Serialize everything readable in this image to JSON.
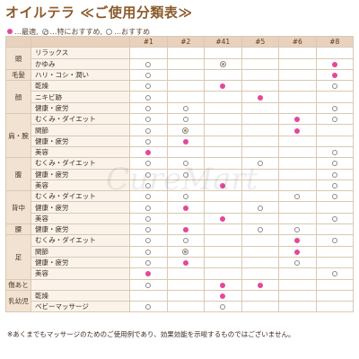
{
  "title": "オイルテラ ≪ご使用分類表≫",
  "legend": {
    "best": "…最適,",
    "especially": "…特におすすめ,",
    "recommended": "…おすすめ"
  },
  "watermark": "CureMart",
  "columns": [
    "#1",
    "#2",
    "#41",
    "#5",
    "#6",
    "#8"
  ],
  "rows": [
    {
      "category": "頭",
      "span": 2,
      "label": "リラックス",
      "marks": [
        "",
        "",
        "",
        "",
        "",
        ""
      ]
    },
    {
      "label": "かゆみ",
      "marks": [
        "rec",
        "",
        "esp",
        "",
        "",
        "best"
      ]
    },
    {
      "category": "毛髪",
      "span": 1,
      "label": "ハリ・コシ・潤い",
      "marks": [
        "rec",
        "",
        "",
        "",
        "",
        "best"
      ]
    },
    {
      "category": "顔",
      "span": 3,
      "label": "乾燥",
      "marks": [
        "rec",
        "",
        "best",
        "",
        "",
        "rec"
      ]
    },
    {
      "label": "ニキビ跡",
      "marks": [
        "rec",
        "",
        "",
        "best",
        "",
        ""
      ]
    },
    {
      "label": "健康・疲労",
      "marks": [
        "rec",
        "rec",
        "",
        "",
        "",
        "rec"
      ]
    },
    {
      "category": "肩・腕",
      "span": 4,
      "label": "むくみ・ダイエット",
      "marks": [
        "rec",
        "rec",
        "",
        "",
        "best",
        "rec"
      ]
    },
    {
      "label": "関節",
      "marks": [
        "rec",
        "esp",
        "",
        "",
        "best",
        ""
      ]
    },
    {
      "label": "健康・疲労",
      "marks": [
        "rec",
        "best",
        "",
        "",
        "",
        ""
      ]
    },
    {
      "label": "美容",
      "marks": [
        "best",
        "",
        "",
        "",
        "",
        "rec"
      ]
    },
    {
      "category": "腹",
      "span": 3,
      "label": "むくみ・ダイエット",
      "marks": [
        "rec",
        "rec",
        "",
        "rec",
        "",
        "rec"
      ]
    },
    {
      "label": "健康・疲労",
      "marks": [
        "rec",
        "rec",
        "",
        "",
        "",
        "rec"
      ]
    },
    {
      "label": "美容",
      "marks": [
        "rec",
        "",
        "best",
        "",
        "",
        "rec"
      ]
    },
    {
      "category": "背中",
      "span": 3,
      "label": "むくみ・ダイエット",
      "marks": [
        "rec",
        "rec",
        "",
        "",
        "rec",
        "rec"
      ]
    },
    {
      "label": "健康・疲労",
      "marks": [
        "rec",
        "best",
        "",
        "rec",
        "",
        ""
      ]
    },
    {
      "label": "美容",
      "marks": [
        "rec",
        "",
        "best",
        "",
        "",
        "rec"
      ]
    },
    {
      "category": "腰",
      "span": 1,
      "label": "健康・疲労",
      "marks": [
        "rec",
        "best",
        "",
        "rec",
        "rec",
        ""
      ]
    },
    {
      "category": "足",
      "span": 4,
      "label": "むくみ・ダイエット",
      "marks": [
        "rec",
        "rec",
        "",
        "",
        "best",
        "rec"
      ]
    },
    {
      "label": "関節",
      "marks": [
        "rec",
        "esp",
        "",
        "",
        "best",
        ""
      ]
    },
    {
      "label": "健康・疲労",
      "marks": [
        "rec",
        "best",
        "",
        "",
        "rec",
        ""
      ]
    },
    {
      "label": "美容",
      "marks": [
        "best",
        "",
        "",
        "",
        "",
        "rec"
      ]
    },
    {
      "category": "傷あと",
      "span": 1,
      "label": "",
      "marks": [
        "rec",
        "",
        "best",
        "best",
        "",
        ""
      ]
    },
    {
      "category": "乳幼児",
      "span": 2,
      "label": "乾燥",
      "marks": [
        "",
        "",
        "best",
        "",
        "",
        ""
      ]
    },
    {
      "label": "ベビーマッサージ",
      "marks": [
        "rec",
        "",
        "rec",
        "",
        "",
        ""
      ]
    }
  ],
  "note": "※あくまでもマッサージのためのご使用例であり、効果効能を示唆するものではございません。"
}
